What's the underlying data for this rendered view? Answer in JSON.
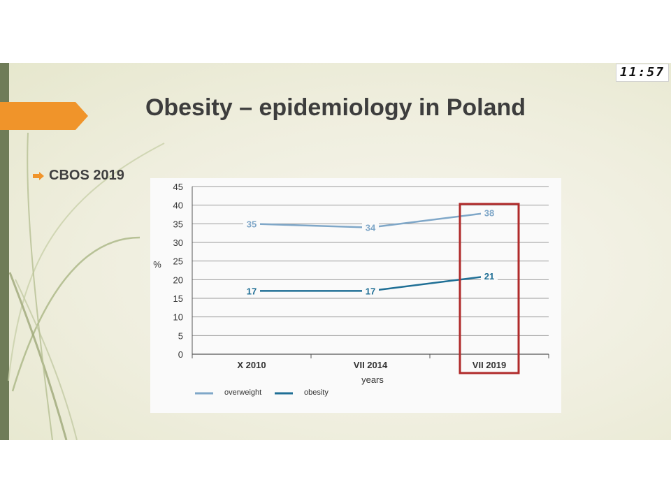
{
  "slide": {
    "title": "Obesity – epidemiology in Poland",
    "bullet": "CBOS 2019",
    "clock": "11:57"
  },
  "chart_data": {
    "type": "line",
    "categories": [
      "X 2010",
      "VII 2014",
      "VII 2019"
    ],
    "series": [
      {
        "name": "overweight",
        "values": [
          35,
          34,
          38
        ],
        "color": "#7fa7c8"
      },
      {
        "name": "obesity",
        "values": [
          17,
          17,
          21
        ],
        "color": "#1f6f95"
      }
    ],
    "ylabel": "%",
    "xlabel": "years",
    "ylim": [
      0,
      45
    ],
    "yticks": [
      "0",
      "5",
      "10",
      "15",
      "20",
      "25",
      "30",
      "35",
      "40",
      "45"
    ],
    "highlight_category": "VII 2019",
    "highlight_color": "#b02a2a",
    "grid": true,
    "legend_position": "bottom-left"
  }
}
